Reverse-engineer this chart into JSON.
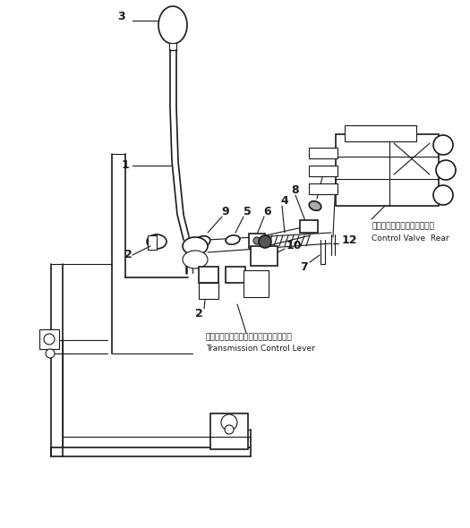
{
  "bg_color": "#ffffff",
  "lc": "#1a1a1a",
  "figsize": [
    5.25,
    5.9
  ],
  "dpi": 100,
  "annotation_jp_1": "コントロールバルブアッシー",
  "annotation_en_1": "Control Valve  Rear",
  "annotation_jp_2": "トランスミッションコントロールレバー",
  "annotation_en_2": "Transmission Control Lever"
}
